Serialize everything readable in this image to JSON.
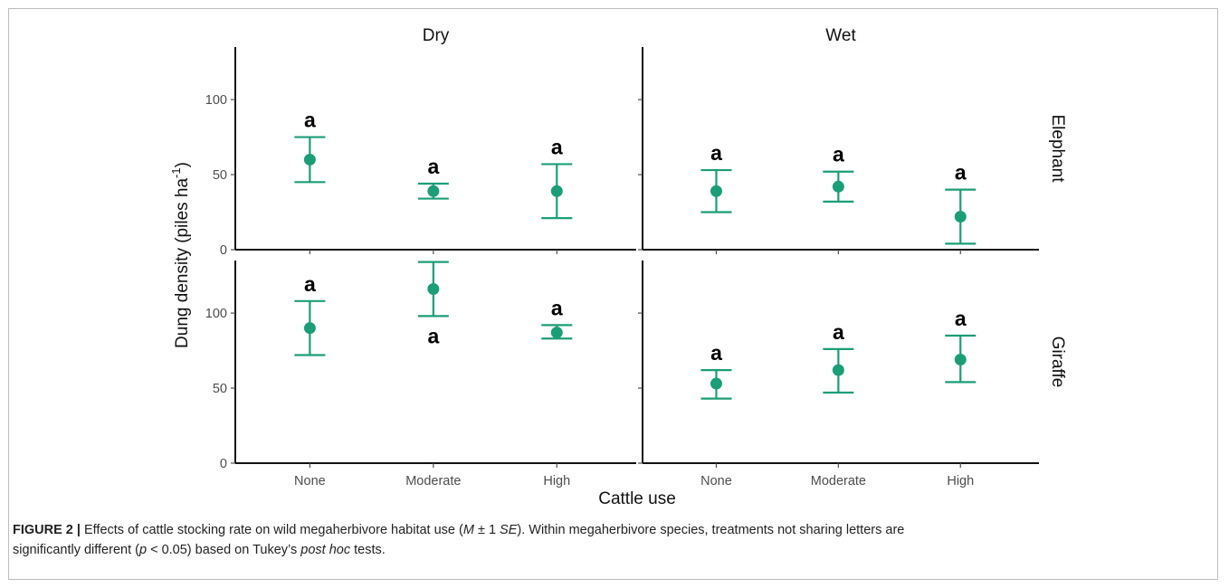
{
  "chart_data": {
    "type": "scatter",
    "chart_style": "faceted point with error bars",
    "x_label": "Cattle use",
    "y_label": "Dung density (piles ha",
    "y_label_superscript": "-1",
    "y_label_suffix": ")",
    "categories": [
      "None",
      "Moderate",
      "High"
    ],
    "columns": [
      "Dry",
      "Wet"
    ],
    "rows": [
      "Elephant",
      "Giraffe"
    ],
    "color": "#1b9e77",
    "facets": [
      {
        "column": "Dry",
        "row": "Elephant",
        "ylim": [
          0,
          135
        ],
        "yticks": [
          0,
          50,
          100
        ],
        "points": [
          {
            "x": "None",
            "mean": 60,
            "lower": 45,
            "upper": 75,
            "letters": [
              "a"
            ],
            "letter_positions": [
              "above"
            ]
          },
          {
            "x": "Moderate",
            "mean": 39,
            "lower": 34,
            "upper": 44,
            "letters": [
              "a"
            ],
            "letter_positions": [
              "above"
            ]
          },
          {
            "x": "High",
            "mean": 39,
            "lower": 21,
            "upper": 57,
            "letters": [
              "a"
            ],
            "letter_positions": [
              "above"
            ]
          }
        ]
      },
      {
        "column": "Wet",
        "row": "Elephant",
        "ylim": [
          0,
          135
        ],
        "yticks": [
          0,
          50,
          100
        ],
        "points": [
          {
            "x": "None",
            "mean": 39,
            "lower": 25,
            "upper": 53,
            "letters": [
              "a"
            ],
            "letter_positions": [
              "above"
            ]
          },
          {
            "x": "Moderate",
            "mean": 42,
            "lower": 32,
            "upper": 52,
            "letters": [
              "a"
            ],
            "letter_positions": [
              "above"
            ]
          },
          {
            "x": "High",
            "mean": 22,
            "lower": 4,
            "upper": 40,
            "letters": [
              "a"
            ],
            "letter_positions": [
              "above"
            ]
          }
        ]
      },
      {
        "column": "Dry",
        "row": "Giraffe",
        "ylim": [
          0,
          135
        ],
        "yticks": [
          0,
          50,
          100
        ],
        "points": [
          {
            "x": "None",
            "mean": 90,
            "lower": 72,
            "upper": 108,
            "letters": [
              "a"
            ],
            "letter_positions": [
              "above"
            ]
          },
          {
            "x": "Moderate",
            "mean": 116,
            "lower": 98,
            "upper": 134,
            "letters": [
              "a"
            ],
            "letter_positions": [
              "below"
            ]
          },
          {
            "x": "High",
            "mean": 87,
            "lower": 83,
            "upper": 92,
            "letters": [
              "a"
            ],
            "letter_positions": [
              "above"
            ]
          }
        ]
      },
      {
        "column": "Wet",
        "row": "Giraffe",
        "ylim": [
          0,
          135
        ],
        "yticks": [
          0,
          50,
          100
        ],
        "points": [
          {
            "x": "None",
            "mean": 53,
            "lower": 43,
            "upper": 62,
            "letters": [
              "a"
            ],
            "letter_positions": [
              "above"
            ]
          },
          {
            "x": "Moderate",
            "mean": 62,
            "lower": 47,
            "upper": 76,
            "letters": [
              "a"
            ],
            "letter_positions": [
              "above"
            ]
          },
          {
            "x": "High",
            "mean": 69,
            "lower": 54,
            "upper": 85,
            "letters": [
              "a"
            ],
            "letter_positions": [
              "above"
            ]
          }
        ]
      }
    ]
  },
  "caption": {
    "label": "FIGURE 2 |",
    "text_1": " Effects of cattle stocking rate on wild megaherbivore habitat use (",
    "m": "M",
    "pm": " ± 1 ",
    "se": "SE",
    "text_2": "). Within megaherbivore species, treatments not sharing letters are",
    "text_3": "significantly different (",
    "p": "p",
    "text_4": " < 0.05) based on Tukey’s ",
    "post_hoc": "post hoc",
    "text_5": " tests."
  }
}
